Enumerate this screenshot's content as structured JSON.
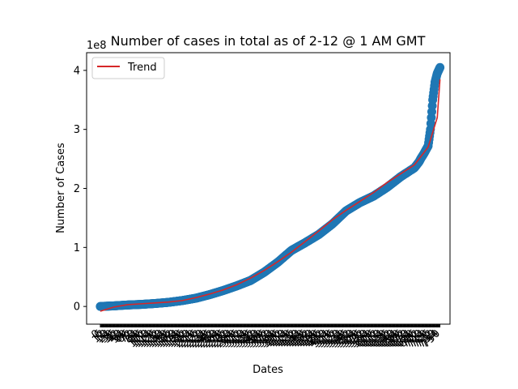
{
  "chart_data": {
    "type": "scatter",
    "title": "Number of cases in total as of 2-12 @ 1 AM GMT",
    "xlabel": "Dates",
    "ylabel": "Number of Cases",
    "y_offset_label": "1e8",
    "y_scale": 100000000,
    "yticks": [
      0,
      100000000,
      200000000,
      300000000,
      400000000
    ],
    "ytick_labels": [
      "0",
      "1",
      "2",
      "3",
      "4"
    ],
    "ylim": [
      -30000000,
      430000000
    ],
    "xlim": [
      -30,
      768
    ],
    "x_count": 747,
    "last_x_label": "750",
    "grid": false,
    "legend": {
      "position": "top-left",
      "entries": [
        "Trend"
      ]
    },
    "colors": {
      "points": "#1f77b4",
      "trend": "#d62728"
    },
    "series": [
      {
        "kind": "scatter",
        "description": "daily cumulative cases (x = day index)",
        "x": [
          0,
          30,
          60,
          90,
          120,
          150,
          180,
          210,
          240,
          270,
          300,
          330,
          360,
          390,
          420,
          450,
          480,
          510,
          540,
          570,
          600,
          630,
          660,
          690,
          700,
          705,
          710,
          715,
          720,
          725,
          730,
          735,
          740,
          746
        ],
        "y": [
          0,
          1000000,
          2500000,
          3500000,
          5000000,
          7000000,
          10000000,
          14000000,
          20000000,
          27000000,
          35000000,
          44000000,
          58000000,
          75000000,
          95000000,
          108000000,
          122000000,
          140000000,
          162000000,
          176000000,
          187000000,
          202000000,
          220000000,
          235000000,
          245000000,
          252000000,
          258000000,
          265000000,
          272000000,
          300000000,
          350000000,
          380000000,
          395000000,
          405000000
        ]
      },
      {
        "kind": "line",
        "name": "Trend",
        "x": [
          0,
          30,
          60,
          90,
          120,
          150,
          180,
          210,
          240,
          270,
          300,
          330,
          360,
          390,
          420,
          450,
          480,
          510,
          540,
          570,
          600,
          630,
          660,
          690,
          720,
          740,
          746
        ],
        "y": [
          -8000000,
          -1000000,
          3000000,
          4500000,
          6000000,
          7500000,
          10000000,
          15000000,
          21000000,
          28000000,
          37000000,
          48000000,
          61000000,
          76000000,
          92000000,
          110000000,
          128000000,
          147000000,
          163000000,
          178000000,
          193000000,
          210000000,
          225000000,
          240000000,
          270000000,
          320000000,
          385000000
        ]
      }
    ]
  }
}
